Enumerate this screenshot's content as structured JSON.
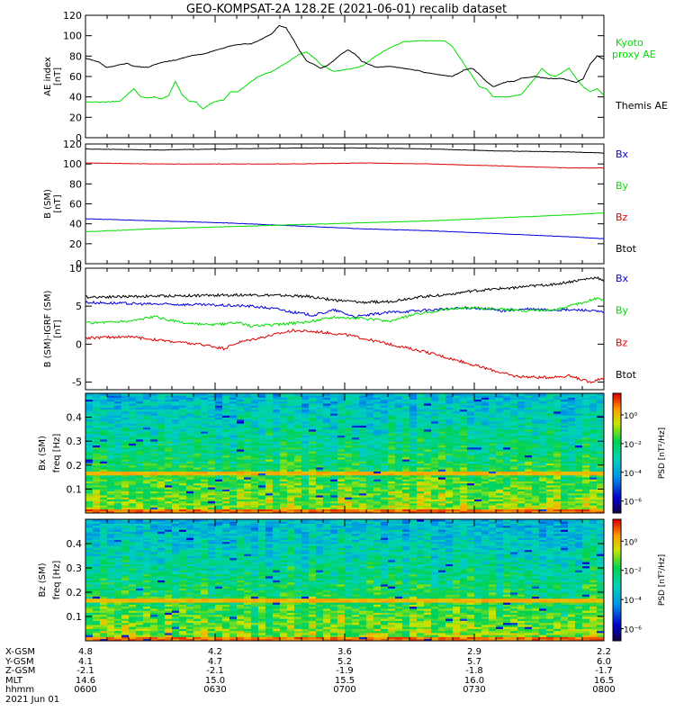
{
  "title": "GEO-KOMPSAT-2A 128.2E (2021-06-01) recalib dataset",
  "chart_data": [
    {
      "type": "line",
      "ylabel": "AE index [nT]",
      "ylim": [
        0,
        120
      ],
      "yticks": [
        0,
        20,
        40,
        60,
        80,
        100,
        120
      ],
      "legend": [
        {
          "label": "Kyoto proxy AE",
          "color": "#00dd00"
        },
        {
          "label": "Themis AE",
          "color": "#000000"
        }
      ],
      "series": [
        {
          "name": "Kyoto proxy AE",
          "color": "#00dd00",
          "points": [
            [
              0,
              35
            ],
            [
              3,
              35
            ],
            [
              5,
              36
            ],
            [
              7,
              48
            ],
            [
              8,
              40
            ],
            [
              9,
              39
            ],
            [
              10,
              40
            ],
            [
              11,
              38
            ],
            [
              12,
              41
            ],
            [
              13,
              55
            ],
            [
              14,
              42
            ],
            [
              15,
              36
            ],
            [
              16,
              35
            ],
            [
              17,
              28
            ],
            [
              18,
              33
            ],
            [
              19,
              36
            ],
            [
              20,
              37
            ],
            [
              21,
              45
            ],
            [
              22,
              45
            ],
            [
              23,
              50
            ],
            [
              24,
              55
            ],
            [
              25,
              60
            ],
            [
              27,
              65
            ],
            [
              29,
              73
            ],
            [
              31,
              82
            ],
            [
              32,
              84
            ],
            [
              33,
              79
            ],
            [
              34,
              72
            ],
            [
              35,
              68
            ],
            [
              36,
              65
            ],
            [
              38,
              67
            ],
            [
              40,
              70
            ],
            [
              42,
              80
            ],
            [
              44,
              88
            ],
            [
              46,
              94
            ],
            [
              48,
              95
            ],
            [
              50,
              95
            ],
            [
              52,
              95
            ],
            [
              53,
              90
            ],
            [
              54,
              80
            ],
            [
              55,
              70
            ],
            [
              56,
              60
            ],
            [
              57,
              50
            ],
            [
              58,
              48
            ],
            [
              59,
              40
            ],
            [
              61,
              40
            ],
            [
              63,
              42
            ],
            [
              65,
              58
            ],
            [
              66,
              68
            ],
            [
              67,
              62
            ],
            [
              68,
              60
            ],
            [
              69,
              64
            ],
            [
              70,
              68
            ],
            [
              71,
              58
            ],
            [
              72,
              50
            ],
            [
              73,
              45
            ],
            [
              74,
              48
            ],
            [
              75,
              42
            ]
          ]
        },
        {
          "name": "Themis AE",
          "color": "#000000",
          "points": [
            [
              0,
              78
            ],
            [
              2,
              74
            ],
            [
              3,
              69
            ],
            [
              4,
              70
            ],
            [
              6,
              73
            ],
            [
              7,
              70
            ],
            [
              9,
              69
            ],
            [
              11,
              74
            ],
            [
              13,
              76
            ],
            [
              15,
              80
            ],
            [
              17,
              82
            ],
            [
              19,
              86
            ],
            [
              21,
              90
            ],
            [
              23,
              92
            ],
            [
              24,
              92
            ],
            [
              25,
              95
            ],
            [
              27,
              102
            ],
            [
              28,
              110
            ],
            [
              29,
              108
            ],
            [
              30,
              97
            ],
            [
              31,
              85
            ],
            [
              32,
              75
            ],
            [
              33,
              72
            ],
            [
              34,
              68
            ],
            [
              35,
              71
            ],
            [
              36,
              76
            ],
            [
              37,
              82
            ],
            [
              38,
              86
            ],
            [
              39,
              82
            ],
            [
              40,
              75
            ],
            [
              41,
              72
            ],
            [
              42,
              69
            ],
            [
              44,
              70
            ],
            [
              46,
              68
            ],
            [
              48,
              66
            ],
            [
              49,
              64
            ],
            [
              51,
              62
            ],
            [
              53,
              60
            ],
            [
              55,
              67
            ],
            [
              56,
              68
            ],
            [
              57,
              62
            ],
            [
              58,
              55
            ],
            [
              59,
              50
            ],
            [
              61,
              55
            ],
            [
              62,
              55
            ],
            [
              63,
              58
            ],
            [
              65,
              60
            ],
            [
              67,
              58
            ],
            [
              69,
              58
            ],
            [
              71,
              54
            ],
            [
              72,
              58
            ],
            [
              73,
              72
            ],
            [
              74,
              80
            ],
            [
              75,
              77
            ]
          ]
        }
      ]
    },
    {
      "type": "line",
      "ylabel": "B (SM) [nT]",
      "ylim": [
        0,
        120
      ],
      "yticks": [
        0,
        20,
        40,
        60,
        80,
        100,
        120
      ],
      "legend": [
        {
          "label": "Bx",
          "color": "#0000dd"
        },
        {
          "label": "By",
          "color": "#00dd00"
        },
        {
          "label": "Bz",
          "color": "#dd0000"
        },
        {
          "label": "Btot",
          "color": "#000000"
        }
      ],
      "series": [
        {
          "name": "Btot",
          "color": "#000000",
          "points": [
            [
              0,
              115
            ],
            [
              10,
              114
            ],
            [
              20,
              115
            ],
            [
              30,
              116
            ],
            [
              40,
              116
            ],
            [
              50,
              115
            ],
            [
              60,
              113
            ],
            [
              70,
              112
            ],
            [
              75,
              111
            ]
          ]
        },
        {
          "name": "Bz",
          "color": "#dd0000",
          "points": [
            [
              0,
              101
            ],
            [
              10,
              100
            ],
            [
              20,
              100
            ],
            [
              30,
              100
            ],
            [
              40,
              101
            ],
            [
              50,
              100
            ],
            [
              60,
              98
            ],
            [
              70,
              96
            ],
            [
              75,
              96
            ]
          ]
        },
        {
          "name": "Bx",
          "color": "#0000dd",
          "points": [
            [
              0,
              45
            ],
            [
              10,
              43
            ],
            [
              20,
              41
            ],
            [
              30,
              38
            ],
            [
              40,
              35
            ],
            [
              50,
              33
            ],
            [
              60,
              30
            ],
            [
              70,
              27
            ],
            [
              75,
              25
            ]
          ]
        },
        {
          "name": "By",
          "color": "#00dd00",
          "points": [
            [
              0,
              32
            ],
            [
              10,
              35
            ],
            [
              20,
              37
            ],
            [
              30,
              39
            ],
            [
              40,
              41
            ],
            [
              50,
              43
            ],
            [
              60,
              46
            ],
            [
              70,
              49
            ],
            [
              75,
              51
            ]
          ]
        }
      ]
    },
    {
      "type": "line",
      "ylabel": "B (SM)-IGRF (SM) [nT]",
      "ylim": [
        -6,
        10
      ],
      "yticks": [
        -5,
        0,
        5,
        10
      ],
      "legend": [
        {
          "label": "Bx",
          "color": "#0000dd"
        },
        {
          "label": "By",
          "color": "#00dd00"
        },
        {
          "label": "Bz",
          "color": "#dd0000"
        },
        {
          "label": "Btot",
          "color": "#000000"
        }
      ],
      "series": [
        {
          "name": "Btot",
          "color": "#000000",
          "points": [
            [
              0,
              6.2
            ],
            [
              8,
              6.3
            ],
            [
              16,
              6.4
            ],
            [
              24,
              6.5
            ],
            [
              32,
              6.3
            ],
            [
              36,
              5.8
            ],
            [
              40,
              5.5
            ],
            [
              44,
              5.6
            ],
            [
              48,
              6.2
            ],
            [
              52,
              6.5
            ],
            [
              56,
              7.0
            ],
            [
              60,
              7.3
            ],
            [
              64,
              7.6
            ],
            [
              68,
              7.9
            ],
            [
              72,
              8.5
            ],
            [
              74,
              8.8
            ],
            [
              75,
              8.2
            ]
          ]
        },
        {
          "name": "Bx",
          "color": "#0000dd",
          "points": [
            [
              0,
              5.5
            ],
            [
              8,
              5.3
            ],
            [
              16,
              5.2
            ],
            [
              24,
              5.0
            ],
            [
              28,
              4.6
            ],
            [
              30,
              4.2
            ],
            [
              33,
              3.8
            ],
            [
              36,
              4.5
            ],
            [
              39,
              3.6
            ],
            [
              44,
              4.2
            ],
            [
              48,
              4.4
            ],
            [
              52,
              4.6
            ],
            [
              56,
              4.8
            ],
            [
              60,
              4.4
            ],
            [
              64,
              4.6
            ],
            [
              68,
              4.5
            ],
            [
              72,
              4.5
            ],
            [
              75,
              4.2
            ]
          ]
        },
        {
          "name": "By",
          "color": "#00dd00",
          "points": [
            [
              0,
              2.8
            ],
            [
              6,
              3.0
            ],
            [
              10,
              3.6
            ],
            [
              14,
              2.8
            ],
            [
              18,
              2.5
            ],
            [
              22,
              2.8
            ],
            [
              24,
              2.4
            ],
            [
              28,
              2.6
            ],
            [
              32,
              2.9
            ],
            [
              36,
              3.6
            ],
            [
              40,
              3.4
            ],
            [
              44,
              3.0
            ],
            [
              48,
              4.0
            ],
            [
              52,
              4.6
            ],
            [
              56,
              4.8
            ],
            [
              60,
              4.6
            ],
            [
              64,
              4.4
            ],
            [
              68,
              4.5
            ],
            [
              72,
              5.5
            ],
            [
              74,
              6.0
            ],
            [
              75,
              5.8
            ]
          ]
        },
        {
          "name": "Bz",
          "color": "#dd0000",
          "points": [
            [
              0,
              0.8
            ],
            [
              6,
              1.0
            ],
            [
              10,
              0.6
            ],
            [
              14,
              0.2
            ],
            [
              18,
              -0.2
            ],
            [
              20,
              -0.6
            ],
            [
              22,
              0.2
            ],
            [
              26,
              1.0
            ],
            [
              30,
              1.8
            ],
            [
              34,
              1.6
            ],
            [
              38,
              1.2
            ],
            [
              42,
              0.4
            ],
            [
              46,
              -0.4
            ],
            [
              50,
              -1.2
            ],
            [
              54,
              -2.2
            ],
            [
              58,
              -3.2
            ],
            [
              62,
              -4.2
            ],
            [
              66,
              -4.4
            ],
            [
              70,
              -4.2
            ],
            [
              73,
              -5.0
            ],
            [
              75,
              -4.4
            ]
          ]
        }
      ]
    },
    {
      "type": "heatmap",
      "ylabel": "Bx (SM) freq [Hz]",
      "ylim": [
        0,
        0.5
      ],
      "yticks": [
        0.1,
        0.2,
        0.3,
        0.4
      ],
      "colorbar": {
        "label": "PSD [nT²/Hz]",
        "ticks": [
          "10⁰",
          "10⁻²",
          "10⁻⁴",
          "10⁻⁶"
        ]
      }
    },
    {
      "type": "heatmap",
      "ylabel": "Bz (SM) freq [Hz]",
      "ylim": [
        0,
        0.5
      ],
      "yticks": [
        0.1,
        0.2,
        0.3,
        0.4
      ],
      "colorbar": {
        "label": "PSD [nT²/Hz]",
        "ticks": [
          "10⁰",
          "10⁻²",
          "10⁻⁴",
          "10⁻⁶"
        ]
      }
    }
  ],
  "footer": {
    "row_labels": [
      "X-GSM",
      "Y-GSM",
      "Z-GSM",
      "MLT",
      "hhmm"
    ],
    "date": "2021 Jun 01",
    "columns": [
      [
        "4.8",
        "4.1",
        "-2.1",
        "14.6",
        "0600"
      ],
      [
        "4.2",
        "4.7",
        "-2.1",
        "15.0",
        "0630"
      ],
      [
        "3.6",
        "5.2",
        "-1.9",
        "15.5",
        "0700"
      ],
      [
        "2.9",
        "5.7",
        "-1.8",
        "16.0",
        "0730"
      ],
      [
        "2.2",
        "6.0",
        "-1.7",
        "16.5",
        "0800"
      ]
    ]
  }
}
